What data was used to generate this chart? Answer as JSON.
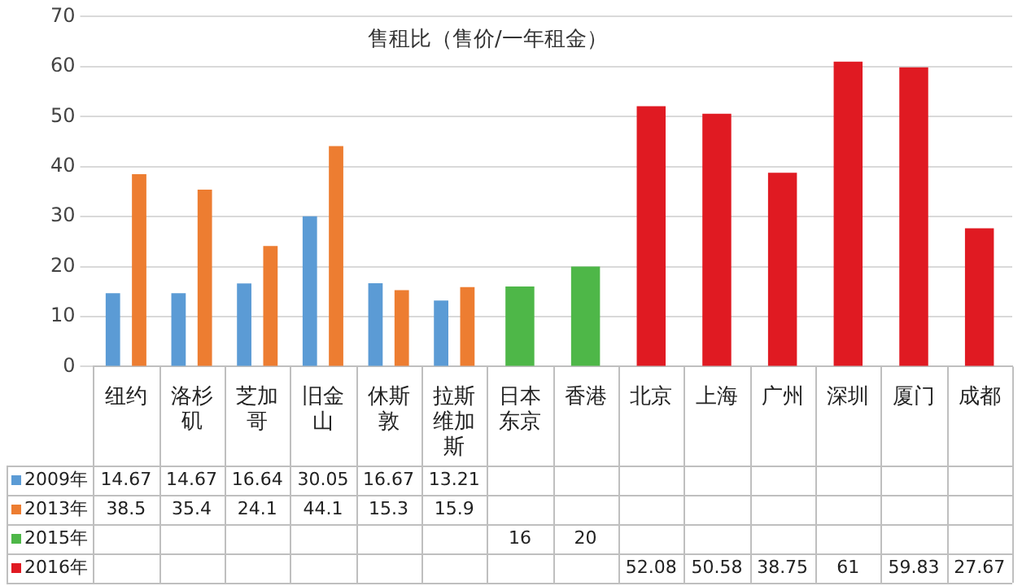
{
  "chart_data": {
    "type": "bar",
    "title": "售租比（售价/一年租金）",
    "categories": [
      "纽约",
      "洛杉矶",
      "芝加哥",
      "旧金山",
      "休斯敦",
      "拉斯维加斯",
      "日本东京",
      "香港",
      "北京",
      "上海",
      "广州",
      "深圳",
      "厦门",
      "成都"
    ],
    "series": [
      {
        "name": "2009年",
        "color": "#5b9bd5",
        "values": [
          14.67,
          14.67,
          16.64,
          30.05,
          16.67,
          13.21,
          null,
          null,
          null,
          null,
          null,
          null,
          null,
          null
        ]
      },
      {
        "name": "2013年",
        "color": "#ed7d31",
        "values": [
          38.5,
          35.4,
          24.1,
          44.1,
          15.3,
          15.9,
          null,
          null,
          null,
          null,
          null,
          null,
          null,
          null
        ]
      },
      {
        "name": "2015年",
        "color": "#4eb748",
        "values": [
          null,
          null,
          null,
          null,
          null,
          null,
          16,
          20,
          null,
          null,
          null,
          null,
          null,
          null
        ]
      },
      {
        "name": "2016年",
        "color": "#e01a22",
        "values": [
          null,
          null,
          null,
          null,
          null,
          null,
          null,
          null,
          52.08,
          50.58,
          38.75,
          61,
          59.83,
          27.67
        ]
      }
    ],
    "ylim": [
      0,
      70
    ],
    "yticks": [
      0,
      10,
      20,
      30,
      40,
      50,
      60,
      70
    ],
    "grid": "y",
    "legend": "bottom",
    "data_labels": true
  }
}
